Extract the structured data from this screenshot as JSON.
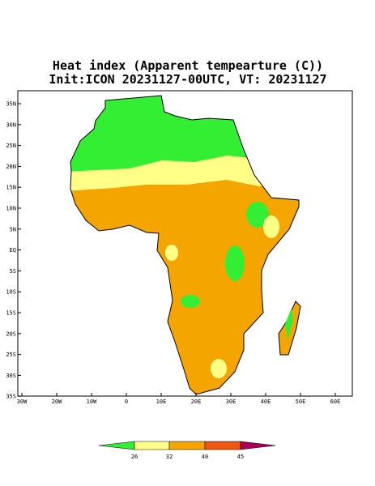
{
  "title": [
    "Heat index (Apparent tempearture (C))",
    "Init:ICON 20231127-00UTC, VT: 20231127"
  ],
  "map": {
    "lat_labels": [
      "35N",
      "30N",
      "25N",
      "20N",
      "15N",
      "10N",
      "5N",
      "EQ",
      "5S",
      "10S",
      "15S",
      "20S",
      "25S",
      "30S",
      "35S"
    ],
    "lon_labels": [
      "30W",
      "20W",
      "10W",
      "0",
      "10E",
      "20E",
      "30E",
      "40E",
      "50E",
      "60E"
    ]
  },
  "colorbar": {
    "levels": [
      26,
      32,
      40,
      45
    ],
    "colors": [
      "#33ee33",
      "#ffff88",
      "#f5a500",
      "#ee5511",
      "#aa0055"
    ]
  }
}
